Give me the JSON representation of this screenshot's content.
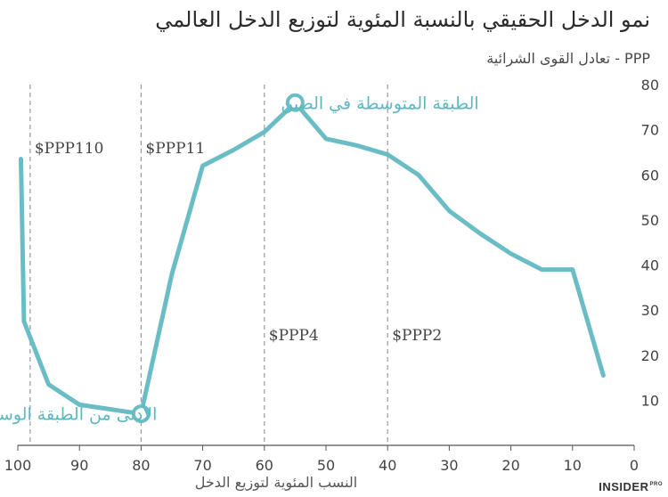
{
  "header": {
    "title": "نمو الدخل الحقيقي بالنسبة المئوية لتوزيع الدخل العالمي",
    "subtitle": "PPP - تعادل القوى الشرائية"
  },
  "brand": {
    "name": "INSIDER",
    "suffix": "PRO"
  },
  "chart_data": {
    "type": "line",
    "title": "نمو الدخل الحقيقي بالنسبة المئوية لتوزيع الدخل العالمي",
    "xlabel": "النسب المئوية لتوزيع الدخل",
    "ylabel": "PPP - تعادل القوى الشرائية",
    "xlim": [
      100,
      0
    ],
    "ylim": [
      0,
      80
    ],
    "x_ticks": [
      "100",
      "90",
      "80",
      "70",
      "60",
      "50",
      "40",
      "30",
      "20",
      "10",
      "0"
    ],
    "y_ticks": [
      "10",
      "20",
      "30",
      "40",
      "50",
      "60",
      "70",
      "80"
    ],
    "grid": false,
    "line_color": "#6bbdc5",
    "series": [
      {
        "x": [
          99.5,
          99,
          95,
          90,
          85,
          80,
          75,
          70,
          65,
          60,
          55,
          50,
          45,
          40,
          35,
          30,
          25,
          20,
          15,
          10,
          5
        ],
        "y": [
          63.5,
          27.5,
          13.5,
          9,
          8,
          7,
          38,
          62,
          65.5,
          69.5,
          76,
          68,
          66.5,
          64.5,
          60,
          52,
          47,
          42.5,
          39,
          39,
          15.5
        ]
      }
    ],
    "reference_lines": [
      {
        "x": 98,
        "label": "$PPP110"
      },
      {
        "x": 80,
        "label": "$PPP11"
      },
      {
        "x": 60,
        "label": "$PPP4"
      },
      {
        "x": 40,
        "label": "$PPP2"
      }
    ],
    "highlight_points": [
      {
        "x": 55,
        "y": 76,
        "label": "الطبقة المتوسطة في الصين"
      },
      {
        "x": 80,
        "y": 7,
        "label": "الأدنى من الطبقة الوسطى في الولايات المتحدة"
      }
    ]
  }
}
